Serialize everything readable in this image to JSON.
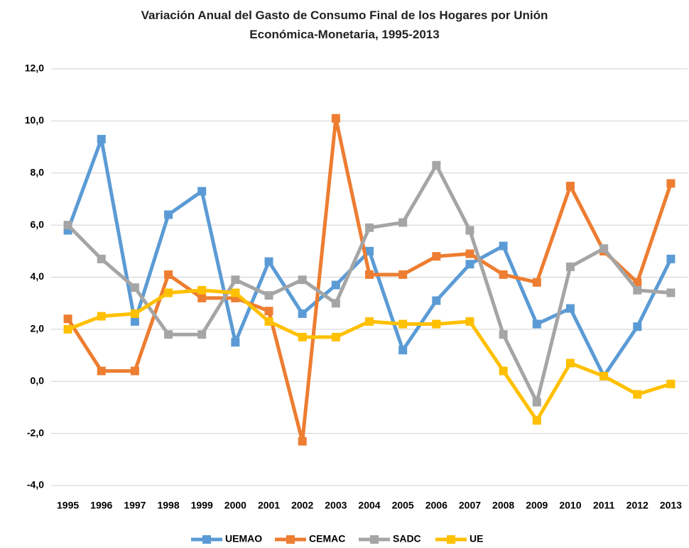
{
  "chart_data": {
    "type": "line",
    "title": "Variación Anual del Gasto de Consumo Final de los Hogares por Unión Económica-Monetaria, 1995-2013",
    "categories": [
      "1995",
      "1996",
      "1997",
      "1998",
      "1999",
      "2000",
      "2001",
      "2002",
      "2003",
      "2004",
      "2005",
      "2006",
      "2007",
      "2008",
      "2009",
      "2010",
      "2011",
      "2012",
      "2013"
    ],
    "series": [
      {
        "name": "UEMAO",
        "color": "#5b9bd5",
        "values": [
          5.8,
          9.3,
          2.3,
          6.4,
          7.3,
          1.5,
          4.6,
          2.6,
          3.7,
          5.0,
          1.2,
          3.1,
          4.5,
          5.2,
          2.2,
          2.8,
          0.2,
          2.1,
          4.7
        ]
      },
      {
        "name": "CEMAC",
        "color": "#ed7d31",
        "values": [
          2.4,
          0.4,
          0.4,
          4.1,
          3.2,
          3.2,
          2.7,
          -2.3,
          10.1,
          4.1,
          4.1,
          4.8,
          4.9,
          4.1,
          3.8,
          7.5,
          5.0,
          3.8,
          7.6
        ]
      },
      {
        "name": "SADC",
        "color": "#a5a5a5",
        "values": [
          6.0,
          4.7,
          3.6,
          1.8,
          1.8,
          3.9,
          3.3,
          3.9,
          3.0,
          5.9,
          6.1,
          8.3,
          5.8,
          1.8,
          -0.8,
          4.4,
          5.1,
          3.5,
          3.4
        ]
      },
      {
        "name": "UE",
        "color": "#ffc000",
        "values": [
          2.0,
          2.5,
          2.6,
          3.4,
          3.5,
          3.4,
          2.3,
          1.7,
          1.7,
          2.3,
          2.2,
          2.2,
          2.3,
          0.4,
          -1.5,
          0.7,
          0.2,
          -0.5,
          -0.1
        ]
      }
    ],
    "ylim": [
      -4,
      12
    ],
    "yticks": [
      {
        "value": -4,
        "label": "-4,0"
      },
      {
        "value": -2,
        "label": "-2,0"
      },
      {
        "value": 0,
        "label": "0,0"
      },
      {
        "value": 2,
        "label": "2,0"
      },
      {
        "value": 4,
        "label": "4,0"
      },
      {
        "value": 6,
        "label": "6,0"
      },
      {
        "value": 8,
        "label": "8,0"
      },
      {
        "value": 10,
        "label": "10,0"
      },
      {
        "value": 12,
        "label": "12,0"
      }
    ],
    "grid": true,
    "legend": "bottom"
  }
}
